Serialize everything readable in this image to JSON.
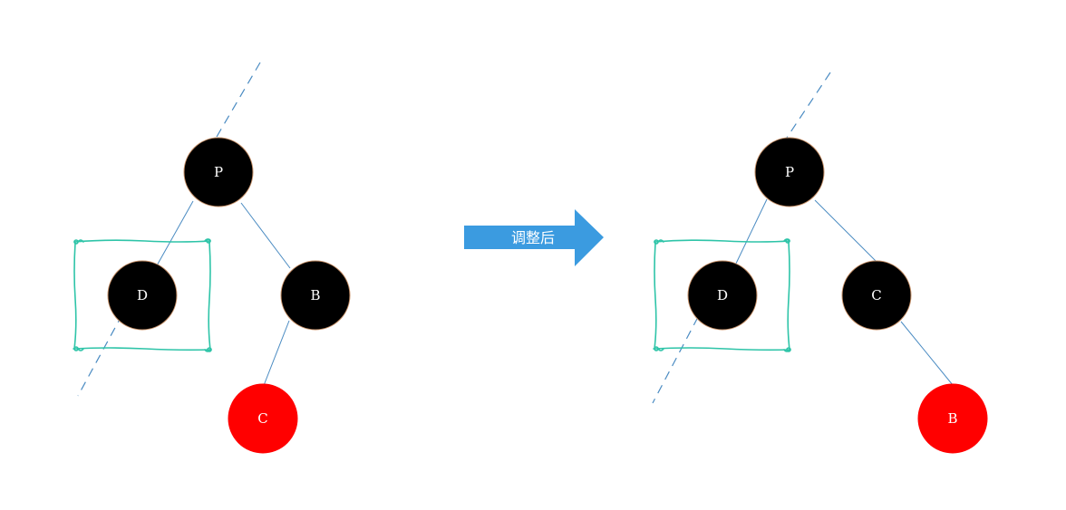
{
  "colors": {
    "black_node": "#000000",
    "red_node": "#ff0000",
    "node_outline": "#c8926a",
    "edge": "#4a8bc2",
    "box": "#2ec4a8",
    "arrow": "#3b9be0"
  },
  "arrow": {
    "label": "调整后"
  },
  "before": {
    "nodes": [
      {
        "id": "P",
        "label": "P",
        "color": "black"
      },
      {
        "id": "D",
        "label": "D",
        "color": "black"
      },
      {
        "id": "B",
        "label": "B",
        "color": "black"
      },
      {
        "id": "C",
        "label": "C",
        "color": "red"
      }
    ],
    "edges": [
      [
        "P",
        "D"
      ],
      [
        "P",
        "B"
      ],
      [
        "B",
        "C"
      ]
    ]
  },
  "after": {
    "nodes": [
      {
        "id": "P",
        "label": "P",
        "color": "black"
      },
      {
        "id": "D",
        "label": "D",
        "color": "black"
      },
      {
        "id": "C",
        "label": "C",
        "color": "black"
      },
      {
        "id": "B",
        "label": "B",
        "color": "red"
      }
    ],
    "edges": [
      [
        "P",
        "D"
      ],
      [
        "P",
        "C"
      ],
      [
        "C",
        "B"
      ]
    ]
  }
}
